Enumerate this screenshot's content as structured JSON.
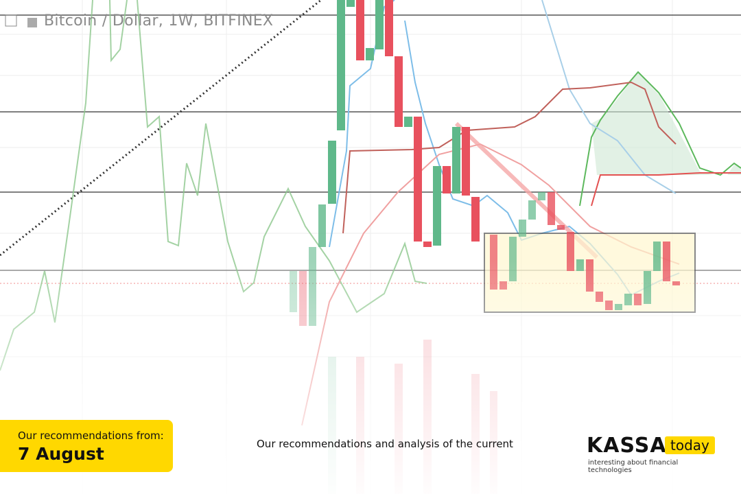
{
  "header": {
    "title": "Bitcoin / Dollar, 1W, BITFINEX"
  },
  "badge": {
    "label": "Our recommendations from:",
    "date": "7 August"
  },
  "caption": "Our recommendations and analysis of the current",
  "logo": {
    "brand": "KASSA",
    "suffix": "today",
    "tagline": "interesting about financial technologies"
  }
}
